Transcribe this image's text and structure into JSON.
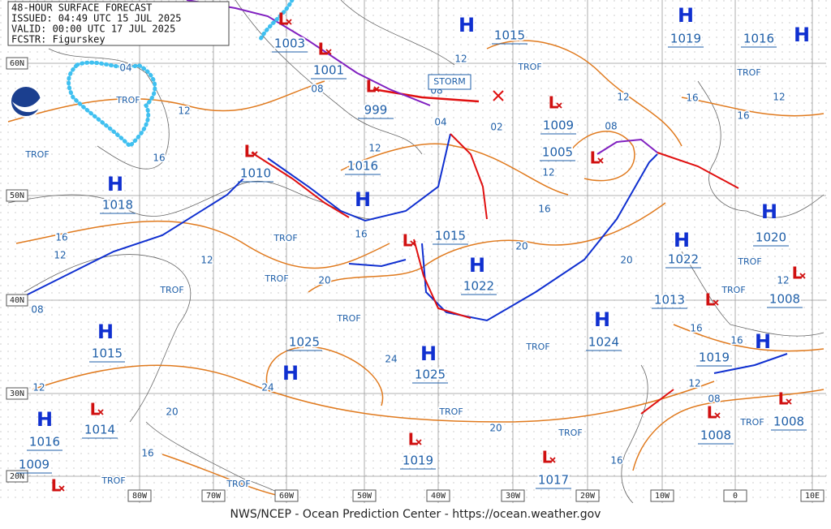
{
  "header": {
    "lines": [
      "48-HOUR SURFACE FORECAST",
      "ISSUED: 04:49 UTC 15 JUL 2025",
      "VALID:  00:00 UTC 17 JUL 2025",
      "FCSTR:  Figurskey"
    ]
  },
  "footer": "NWS/NCEP - Ocean Prediction Center - https://ocean.weather.gov",
  "storm_label": "STORM",
  "high_symbol": "H",
  "low_symbol": "L",
  "trof_label": "TROF",
  "lat_labels": [
    "60N",
    "50N",
    "40N",
    "30N",
    "20N"
  ],
  "lon_labels": [
    "80W",
    "70W",
    "60W",
    "50W",
    "40W",
    "30W",
    "20W",
    "10W",
    "0",
    "10E"
  ],
  "highs": [
    "1015",
    "1019",
    "1016",
    "1018",
    "1016",
    "1022",
    "1020",
    "1022",
    "1015",
    "1024",
    "1025",
    "1025",
    "1016",
    "1019"
  ],
  "lows": [
    "1003",
    "1001",
    "999",
    "1009",
    "1005",
    "1010",
    "1015",
    "1013",
    "1008",
    "1014",
    "1008",
    "1008",
    "1019",
    "1017",
    "1009"
  ],
  "isobar_labels": [
    "04",
    "12",
    "16",
    "16",
    "12",
    "08",
    "12",
    "16",
    "20",
    "12",
    "20",
    "16",
    "24",
    "24",
    "12",
    "08",
    "08",
    "04",
    "02",
    "12",
    "12",
    "16",
    "20",
    "20",
    "08",
    "12",
    "16",
    "16",
    "12",
    "16",
    "16",
    "12",
    "12",
    "08",
    "20",
    "16"
  ]
}
